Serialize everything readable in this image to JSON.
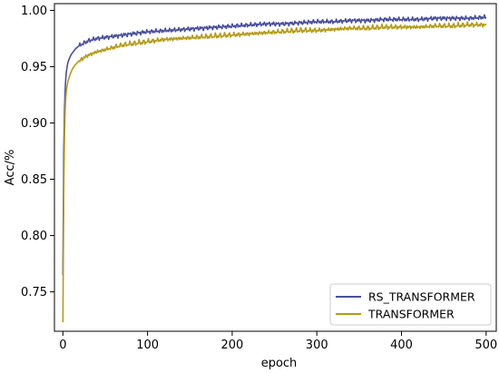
{
  "chart_data": {
    "type": "line",
    "title": "",
    "xlabel": "epoch",
    "ylabel": "Acc/%",
    "xlim": [
      -10,
      512
    ],
    "ylim": [
      0.715,
      1.006
    ],
    "xticks": [
      0,
      100,
      200,
      300,
      400,
      500
    ],
    "xtick_labels": [
      "0",
      "100",
      "200",
      "300",
      "400",
      "500"
    ],
    "yticks": [
      0.75,
      0.8,
      0.85,
      0.9,
      0.95,
      1.0
    ],
    "ytick_labels": [
      "0.75",
      "0.80",
      "0.85",
      "0.90",
      "0.95",
      "1.00"
    ],
    "grid": false,
    "legend_position": "bottom-right",
    "series": [
      {
        "name": "RS_TRANSFORMER",
        "color": "#4a4f9e",
        "x": [
          0,
          1,
          2,
          3,
          4,
          5,
          6,
          8,
          10,
          12,
          15,
          20,
          25,
          30,
          40,
          50,
          60,
          70,
          80,
          90,
          100,
          120,
          140,
          160,
          180,
          200,
          220,
          240,
          260,
          280,
          300,
          320,
          340,
          360,
          380,
          400,
          420,
          440,
          460,
          480,
          500
        ],
        "y": [
          0.765,
          0.875,
          0.915,
          0.935,
          0.945,
          0.95,
          0.954,
          0.958,
          0.961,
          0.963,
          0.966,
          0.969,
          0.971,
          0.973,
          0.975,
          0.976,
          0.977,
          0.978,
          0.979,
          0.98,
          0.981,
          0.982,
          0.983,
          0.984,
          0.985,
          0.986,
          0.987,
          0.988,
          0.988,
          0.989,
          0.99,
          0.99,
          0.991,
          0.991,
          0.992,
          0.992,
          0.992,
          0.993,
          0.993,
          0.993,
          0.994
        ]
      },
      {
        "name": "TRANSFORMER",
        "color": "#b59b18",
        "x": [
          0,
          1,
          2,
          3,
          4,
          5,
          6,
          8,
          10,
          12,
          15,
          20,
          25,
          30,
          40,
          50,
          60,
          70,
          80,
          90,
          100,
          120,
          140,
          160,
          180,
          200,
          220,
          240,
          260,
          280,
          300,
          320,
          340,
          360,
          380,
          400,
          420,
          440,
          460,
          480,
          500
        ],
        "y": [
          0.723,
          0.84,
          0.895,
          0.918,
          0.928,
          0.933,
          0.937,
          0.942,
          0.946,
          0.949,
          0.952,
          0.956,
          0.959,
          0.961,
          0.964,
          0.966,
          0.968,
          0.97,
          0.971,
          0.972,
          0.973,
          0.975,
          0.976,
          0.977,
          0.978,
          0.979,
          0.98,
          0.981,
          0.982,
          0.983,
          0.983,
          0.984,
          0.985,
          0.985,
          0.986,
          0.986,
          0.986,
          0.987,
          0.987,
          0.988,
          0.988
        ]
      }
    ]
  }
}
